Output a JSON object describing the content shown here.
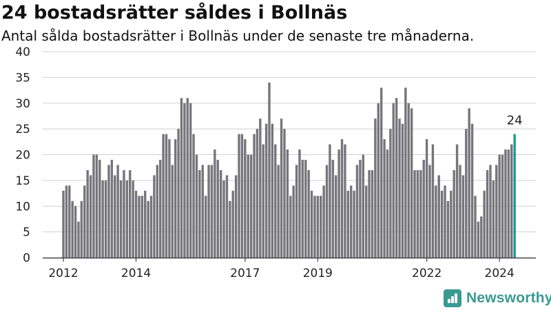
{
  "title": "24 bostadsrätter såldes i Bollnäs",
  "subtitle": "Antal sålda bostadsrätter i Bollnäs under de senaste tre månaderna.",
  "brand": {
    "name": "Newsworthy",
    "icon": "newsworthy-bar-logo-icon",
    "color": "#3a9a92"
  },
  "colors": {
    "bar": "#76757b",
    "highlight": "#1a9a8f",
    "axis": "#444444",
    "grid": "#cfcfcf"
  },
  "chart_data": {
    "type": "bar",
    "title": "24 bostadsrätter såldes i Bollnäs",
    "xlabel": "",
    "ylabel": "",
    "ylim": [
      0,
      40
    ],
    "yticks": [
      0,
      5,
      10,
      15,
      20,
      25,
      30,
      35,
      40
    ],
    "grid": true,
    "legend": "none",
    "x_start": "2012-01",
    "frequency": "monthly",
    "xtick_labels": [
      {
        "label": "2012",
        "month": "2012-01"
      },
      {
        "label": "2014",
        "month": "2014-01"
      },
      {
        "label": "2017",
        "month": "2017-01"
      },
      {
        "label": "2019",
        "month": "2019-01"
      },
      {
        "label": "2022",
        "month": "2022-01"
      },
      {
        "label": "2024",
        "month": "2024-01"
      }
    ],
    "values": [
      13,
      14,
      14,
      11,
      10,
      7,
      11,
      14,
      17,
      16,
      20,
      20,
      19,
      15,
      15,
      18,
      19,
      16,
      18,
      15,
      17,
      15,
      17,
      15,
      13,
      12,
      12,
      13,
      11,
      12,
      16,
      18,
      19,
      24,
      24,
      23,
      18,
      23,
      25,
      31,
      30,
      31,
      30,
      24,
      20,
      17,
      18,
      12,
      18,
      18,
      21,
      19,
      17,
      15,
      16,
      11,
      13,
      16,
      24,
      24,
      23,
      20,
      20,
      24,
      25,
      27,
      22,
      26,
      34,
      26,
      22,
      18,
      27,
      25,
      21,
      12,
      14,
      18,
      21,
      19,
      19,
      17,
      13,
      12,
      12,
      12,
      14,
      18,
      22,
      19,
      16,
      21,
      23,
      22,
      13,
      14,
      13,
      18,
      19,
      20,
      14,
      17,
      17,
      27,
      30,
      33,
      23,
      21,
      25,
      30,
      31,
      27,
      26,
      33,
      30,
      29,
      17,
      17,
      17,
      19,
      23,
      18,
      22,
      14,
      16,
      13,
      14,
      11,
      13,
      17,
      22,
      18,
      16,
      25,
      29,
      26,
      12,
      7,
      8,
      13,
      17,
      18,
      15,
      18,
      20,
      20,
      21,
      21,
      22,
      24
    ],
    "highlight_last": true,
    "annotations": [
      {
        "text": "24",
        "target": "last"
      }
    ]
  }
}
